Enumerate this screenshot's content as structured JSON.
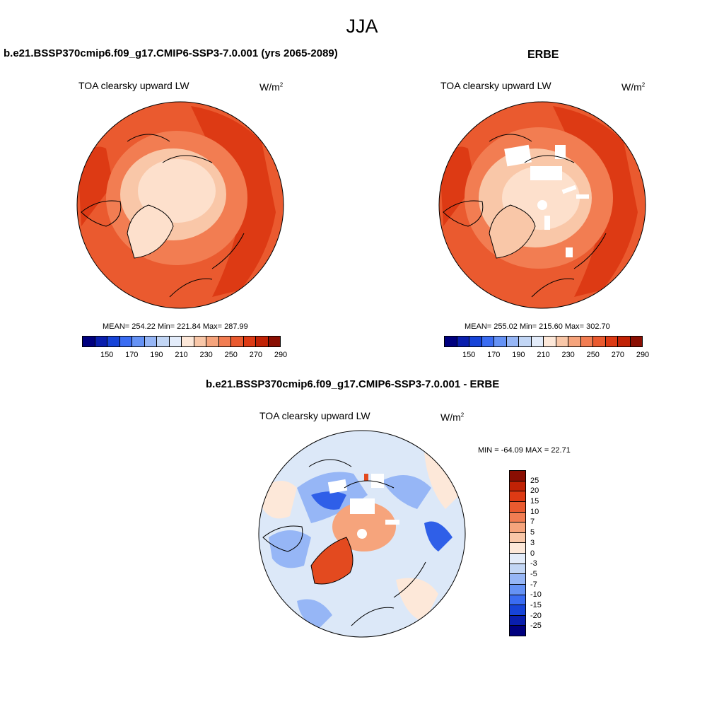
{
  "season": "JJA",
  "panels": [
    {
      "case_title": "b.e21.BSSP370cmip6.f09_g17.CMIP6-SSP3-7.0.001 (yrs 2065-2089)",
      "variable": "TOA clearsky upward LW",
      "units_base": "W/m",
      "units_exp": "2",
      "stats": "MEAN= 254.22  Min= 221.84  Max= 287.99"
    },
    {
      "case_title": "ERBE",
      "variable": "TOA clearsky upward LW",
      "units_base": "W/m",
      "units_exp": "2",
      "stats": "MEAN= 255.02  Min= 215.60  Max= 302.70"
    },
    {
      "case_title": "b.e21.BSSP370cmip6.f09_g17.CMIP6-SSP3-7.0.001 - ERBE",
      "variable": "TOA clearsky upward LW",
      "units_base": "W/m",
      "units_exp": "2",
      "stats": "MIN = -64.09 MAX =  22.71"
    }
  ],
  "abs_colorbar": {
    "colors": [
      "#00007f",
      "#0a1fae",
      "#1744d8",
      "#3a6cf2",
      "#6592f5",
      "#96b6f6",
      "#c2d6f5",
      "#e3ecfa",
      "#fde8d9",
      "#f9c7a8",
      "#f6a47c",
      "#f27d52",
      "#ea5a2f",
      "#dd3a14",
      "#c12205",
      "#8a0e02"
    ],
    "labels": [
      "150",
      "170",
      "190",
      "210",
      "230",
      "250",
      "270",
      "290"
    ]
  },
  "diff_colorbar": {
    "colors": [
      "#00007f",
      "#0a1fae",
      "#1744d8",
      "#3a6cf2",
      "#6592f5",
      "#96b6f6",
      "#c2d6f5",
      "#e3ecfa",
      "#fde8d9",
      "#f9c7a8",
      "#f6a47c",
      "#f27d52",
      "#ea5a2f",
      "#dd3a14",
      "#c12205",
      "#8a0e02"
    ],
    "labels": [
      "-25",
      "-20",
      "-15",
      "-10",
      "-7",
      "-5",
      "-3",
      "0",
      "3",
      "5",
      "7",
      "10",
      "15",
      "20",
      "25"
    ]
  },
  "map_colors": {
    "ocean_mid": "#ea5a2f",
    "ocean_low": "#f27d52",
    "land_warm": "#dd3a14",
    "arctic": "#fde0cc",
    "arctic_mid": "#f9c7a8",
    "greenland": "#f6a47c",
    "diff_base": "#dce8f8",
    "diff_neg": "#2f5fe8",
    "diff_neg_light": "#96b6f6",
    "diff_pos": "#f6a47c",
    "diff_pos_strong": "#e34a1f"
  }
}
